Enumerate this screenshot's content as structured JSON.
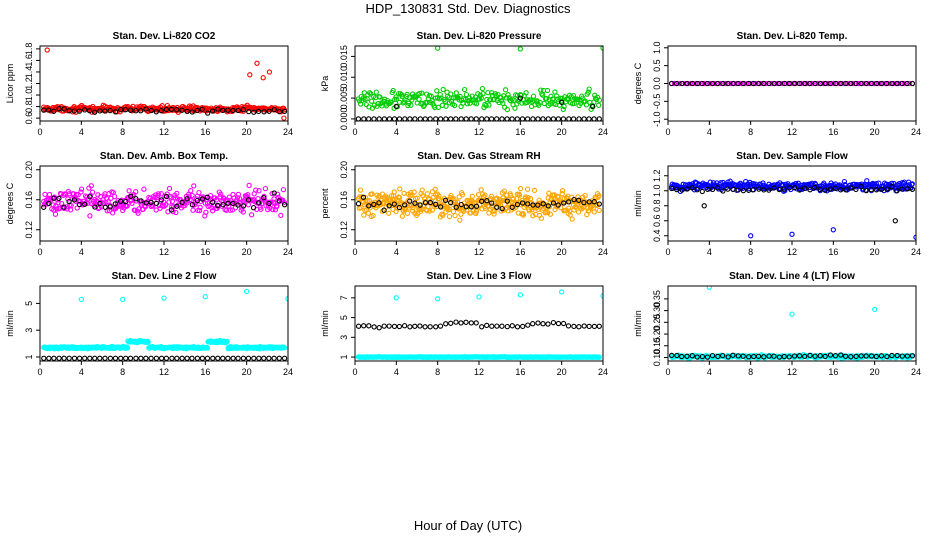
{
  "title": "HDP_130831  Std. Dev. Diagnostics",
  "x_title": "Hour of Day (UTC)",
  "colors": {
    "black": "#000000",
    "red": "#ff0000",
    "green": "#00cc00",
    "magenta": "#ff00ff",
    "orange": "#ffa500",
    "blue": "#0000ff",
    "cyan": "#00ffff"
  },
  "chart_data": [
    {
      "type": "scatter",
      "title": "Stan. Dev. Li-820 CO2",
      "ylabel": "Licor ppm",
      "xlim": [
        0,
        24
      ],
      "ylim": [
        0.55,
        1.85
      ],
      "xticks": [
        "0",
        "4",
        "8",
        "12",
        "16",
        "20",
        "24"
      ],
      "yticks": [
        "0.6",
        "0.8",
        "1.0",
        "1.2",
        "1.4",
        "1.6",
        "1.8"
      ],
      "series": [
        {
          "color": "#ff0000",
          "base": 0.76,
          "spread": 0.05,
          "n": 300,
          "outliers": [
            [
              0.7,
              1.78
            ],
            [
              21.0,
              1.55
            ],
            [
              20.3,
              1.35
            ],
            [
              21.6,
              1.3
            ],
            [
              22.2,
              1.4
            ],
            [
              23.6,
              0.6
            ]
          ]
        },
        {
          "color": "#000000",
          "base": 0.73,
          "spread": 0.04,
          "n": 48
        }
      ]
    },
    {
      "type": "scatter",
      "title": "Stan. Dev. Li-820 Pressure",
      "ylabel": "kPa",
      "xlim": [
        0,
        24
      ],
      "ylim": [
        -0.0005,
        0.0175
      ],
      "xticks": [
        "0",
        "4",
        "8",
        "12",
        "16",
        "20",
        "24"
      ],
      "yticks": [
        "0.000",
        "0.005",
        "0.010",
        "0.015"
      ],
      "series": [
        {
          "color": "#00cc00",
          "base": 0.0045,
          "spread": 0.0025,
          "n": 260,
          "outliers": [
            [
              8.0,
              0.017
            ],
            [
              16.0,
              0.0168
            ],
            [
              24.0,
              0.017
            ]
          ]
        },
        {
          "color": "#000000",
          "base": 0.0,
          "spread": 0.0,
          "n": 48,
          "outliers": [
            [
              4.0,
              0.003
            ],
            [
              16.0,
              0.005
            ],
            [
              20.0,
              0.004
            ],
            [
              23.0,
              0.003
            ]
          ]
        }
      ]
    },
    {
      "type": "scatter",
      "title": "Stan. Dev. Li-820 Temp.",
      "ylabel": "degrees C",
      "xlim": [
        0,
        24
      ],
      "ylim": [
        -1.05,
        1.05
      ],
      "xticks": [
        "0",
        "4",
        "8",
        "12",
        "16",
        "20",
        "24"
      ],
      "yticks": [
        "-1.0",
        "-0.5",
        "0.0",
        "0.5",
        "1.0"
      ],
      "series": [
        {
          "color": "#ff00ff",
          "base": 0.0,
          "spread": 0.0,
          "n": 90
        },
        {
          "color": "#000000",
          "base": 0.0,
          "spread": 0.0,
          "n": 48
        }
      ]
    },
    {
      "type": "scatter",
      "title": "Stan. Dev. Amb. Box Temp.",
      "ylabel": "degrees C",
      "xlim": [
        0,
        24
      ],
      "ylim": [
        0.105,
        0.205
      ],
      "xticks": [
        "0",
        "4",
        "8",
        "12",
        "16",
        "20",
        "24"
      ],
      "yticks": [
        "0.12",
        "0.16",
        "0.20"
      ],
      "series": [
        {
          "color": "#ff00ff",
          "base": 0.158,
          "spread": 0.018,
          "n": 330
        },
        {
          "color": "#000000",
          "base": 0.155,
          "spread": 0.012,
          "n": 48
        }
      ]
    },
    {
      "type": "scatter",
      "title": "Stan. Dev. Gas Stream RH",
      "ylabel": "percent",
      "xlim": [
        0,
        24
      ],
      "ylim": [
        0.105,
        0.205
      ],
      "xticks": [
        "0",
        "4",
        "8",
        "12",
        "16",
        "20",
        "24"
      ],
      "yticks": [
        "0.12",
        "0.16",
        "0.20"
      ],
      "series": [
        {
          "color": "#ffa500",
          "base": 0.155,
          "spread": 0.018,
          "n": 420
        },
        {
          "color": "#000000",
          "base": 0.155,
          "spread": 0.01,
          "n": 48
        }
      ]
    },
    {
      "type": "scatter",
      "title": "Stan. Dev. Sample Flow",
      "ylabel": "ml/min",
      "xlim": [
        0,
        24
      ],
      "ylim": [
        0.33,
        1.33
      ],
      "xticks": [
        "0",
        "4",
        "8",
        "12",
        "16",
        "20",
        "24"
      ],
      "yticks": [
        "0.4",
        "0.6",
        "0.8",
        "1.0",
        "1.2"
      ],
      "series": [
        {
          "color": "#0000ff",
          "base": 1.06,
          "spread": 0.06,
          "n": 330,
          "outliers": [
            [
              8.0,
              0.4
            ],
            [
              12.0,
              0.42
            ],
            [
              16.0,
              0.48
            ],
            [
              24.0,
              0.38
            ]
          ]
        },
        {
          "color": "#000000",
          "base": 1.02,
          "spread": 0.03,
          "n": 48,
          "outliers": [
            [
              3.5,
              0.8
            ],
            [
              22.0,
              0.6
            ]
          ]
        }
      ]
    },
    {
      "type": "scatter",
      "title": "Stan. Dev. Line 2 Flow",
      "ylabel": "ml/min",
      "xlim": [
        0,
        24
      ],
      "ylim": [
        0.7,
        6.3
      ],
      "xticks": [
        "0",
        "4",
        "8",
        "12",
        "16",
        "20",
        "24"
      ],
      "yticks": [
        "1",
        "3",
        "5"
      ],
      "series": [
        {
          "color": "#00ffff",
          "base": 1.7,
          "spread": 0.08,
          "n": 360,
          "bumps": [
            [
              8.5,
              10.5,
              0.45
            ],
            [
              16.2,
              18.2,
              0.45
            ]
          ],
          "outliers": [
            [
              4.0,
              5.3
            ],
            [
              8.0,
              5.3
            ],
            [
              12.0,
              5.4
            ],
            [
              16.0,
              5.5
            ],
            [
              20.0,
              5.9
            ],
            [
              24.0,
              5.35
            ]
          ]
        },
        {
          "color": "#000000",
          "base": 0.9,
          "spread": 0.0,
          "n": 48
        }
      ]
    },
    {
      "type": "scatter",
      "title": "Stan. Dev. Line 3 Flow",
      "ylabel": "ml/min",
      "xlim": [
        0,
        24
      ],
      "ylim": [
        0.6,
        8.2
      ],
      "xticks": [
        "0",
        "4",
        "8",
        "12",
        "16",
        "20",
        "24"
      ],
      "yticks": [
        "1",
        "3",
        "5",
        "7"
      ],
      "series": [
        {
          "color": "#00ffff",
          "base": 1.0,
          "spread": 0.03,
          "n": 360,
          "outliers": [
            [
              4.0,
              7.0
            ],
            [
              8.0,
              6.9
            ],
            [
              12.0,
              7.1
            ],
            [
              16.0,
              7.3
            ],
            [
              20.0,
              7.6
            ],
            [
              24.0,
              7.2
            ]
          ]
        },
        {
          "color": "#000000",
          "base": 4.1,
          "spread": 0.12,
          "n": 48,
          "bumps": [
            [
              8.5,
              12.0,
              0.35
            ],
            [
              17.0,
              20.5,
              0.3
            ]
          ]
        }
      ]
    },
    {
      "type": "scatter",
      "title": "Stan. Dev. Line 4 (LT) Flow",
      "ylabel": "ml/min",
      "xlim": [
        0,
        24
      ],
      "ylim": [
        0.085,
        0.405
      ],
      "xticks": [
        "0",
        "4",
        "8",
        "12",
        "16",
        "20",
        "24"
      ],
      "yticks": [
        "0.10",
        "0.15",
        "0.20",
        "0.25",
        "0.30",
        "0.35"
      ],
      "series": [
        {
          "color": "#00ffff",
          "base": 0.104,
          "spread": 0.006,
          "n": 330,
          "outliers": [
            [
              4.0,
              0.4
            ],
            [
              12.0,
              0.285
            ],
            [
              20.0,
              0.305
            ]
          ]
        },
        {
          "color": "#000000",
          "base": 0.106,
          "spread": 0.005,
          "n": 48
        }
      ]
    }
  ]
}
